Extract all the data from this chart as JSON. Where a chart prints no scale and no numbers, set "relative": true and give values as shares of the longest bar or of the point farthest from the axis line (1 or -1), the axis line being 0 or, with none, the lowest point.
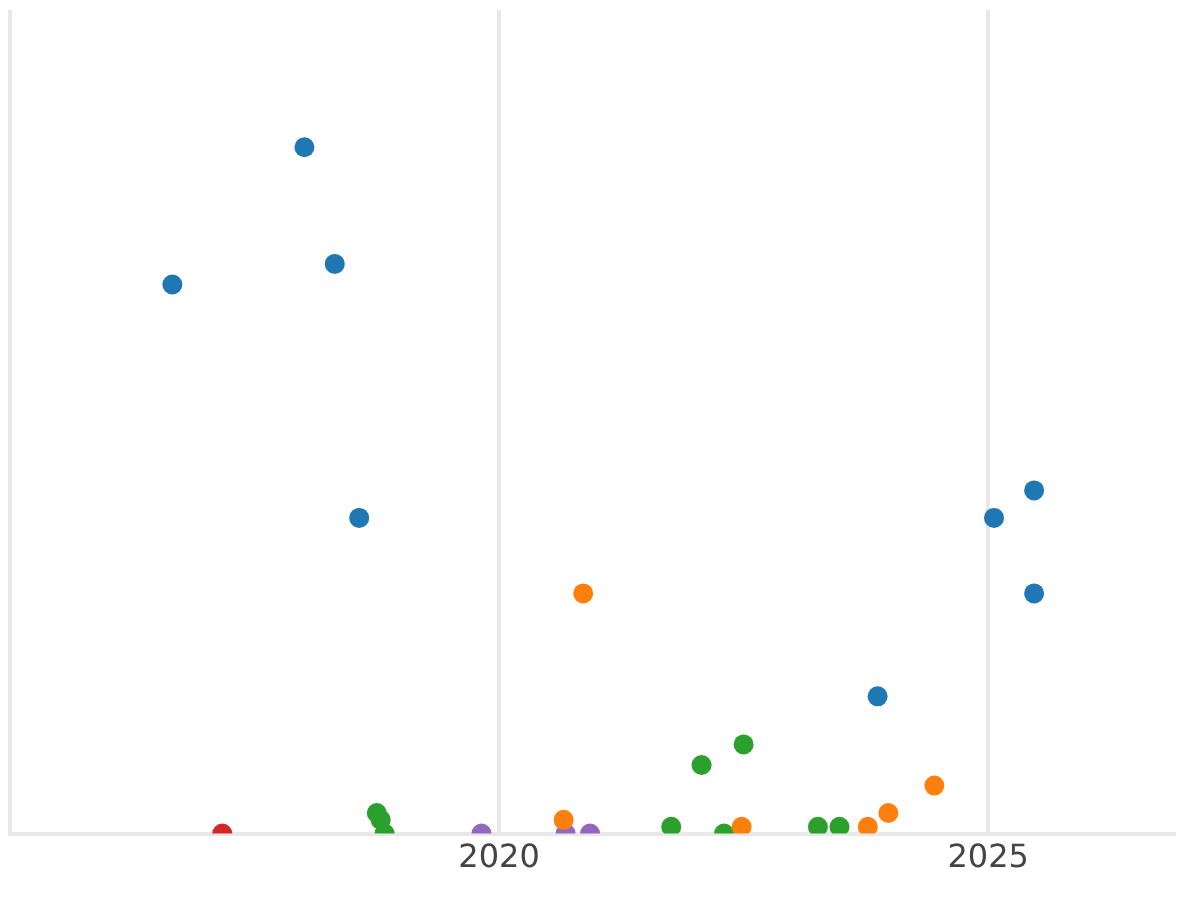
{
  "chart_data": {
    "type": "scatter",
    "relative": true,
    "grid": "x",
    "legend": false,
    "marker": "circle",
    "xlim": [
      2015,
      2026.9
    ],
    "xticks": [
      {
        "value": 2015,
        "label": null
      },
      2020,
      2025
    ],
    "tick_labels": "x",
    "series": [
      {
        "color": "#1f77b4",
        "x": [
          2016.66,
          2018.01,
          2018.32,
          2018.57,
          2023.87,
          2025.06,
          2025.47,
          2025.47
        ],
        "values": [
          0.8,
          1.0,
          0.83,
          0.46,
          0.2,
          0.46,
          0.5,
          0.35
        ]
      },
      {
        "color": "#ff7f0e",
        "x": [
          2020.86,
          2020.66,
          2022.48,
          2023.77,
          2023.98,
          2024.45
        ],
        "values": [
          0.35,
          0.02,
          0.01,
          0.01,
          0.03,
          0.07
        ]
      },
      {
        "color": "#2ca02c",
        "x": [
          2018.75,
          2018.79,
          2018.83,
          2021.76,
          2022.07,
          2022.5,
          2022.3,
          2023.26,
          2023.48
        ],
        "values": [
          0.03,
          0.02,
          0.0,
          0.01,
          0.1,
          0.13,
          0.0,
          0.01,
          0.01
        ]
      },
      {
        "color": "#d62728",
        "x": [
          2017.17
        ],
        "values": [
          0.0
        ]
      },
      {
        "color": "#9467bd",
        "x": [
          2019.82,
          2020.68,
          2020.93
        ],
        "values": [
          0.0,
          0.0,
          0.0
        ]
      }
    ]
  }
}
